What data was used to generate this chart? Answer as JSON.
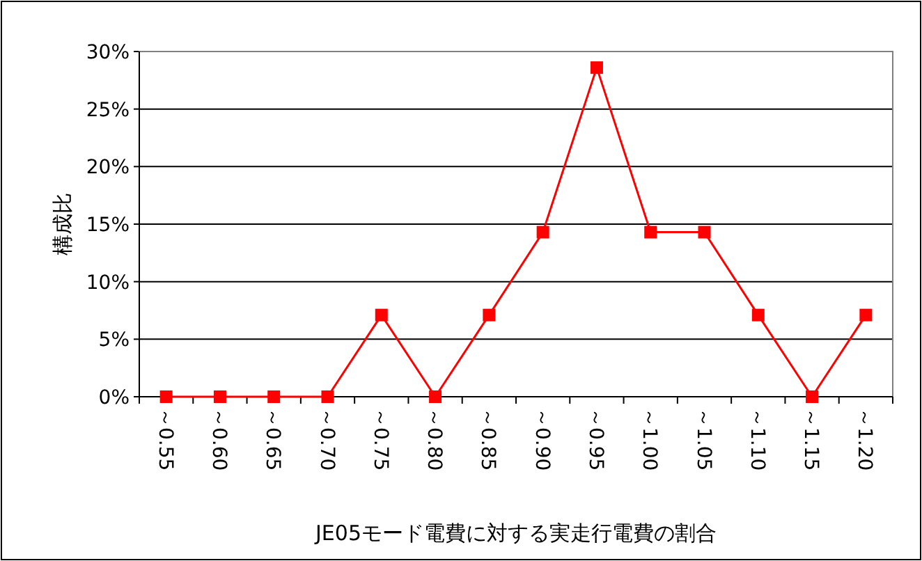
{
  "chart_data": {
    "type": "line",
    "xlabel": "JE05モード電費に対する実走行電費の割合",
    "ylabel": "構成比",
    "categories": [
      "～0.55",
      "～0.60",
      "～0.65",
      "～0.70",
      "～0.75",
      "～0.80",
      "～0.85",
      "～0.90",
      "～0.95",
      "～1.00",
      "～1.05",
      "～1.10",
      "～1.15",
      "～1.20"
    ],
    "series": [
      {
        "color": "#ff0000",
        "values": [
          0,
          0,
          0,
          0,
          7.1,
          0,
          7.1,
          14.3,
          28.6,
          14.3,
          14.3,
          7.1,
          0,
          7.1
        ]
      }
    ],
    "ylim": [
      0,
      30
    ],
    "yticks": [
      {
        "value": 0,
        "label": "0%"
      },
      {
        "value": 5,
        "label": "5%"
      },
      {
        "value": 10,
        "label": "10%"
      },
      {
        "value": 15,
        "label": "15%"
      },
      {
        "value": 20,
        "label": "20%"
      },
      {
        "value": 25,
        "label": "25%"
      },
      {
        "value": 30,
        "label": "30%"
      }
    ],
    "grid": "y",
    "marker": "square",
    "line_style": "solid"
  }
}
